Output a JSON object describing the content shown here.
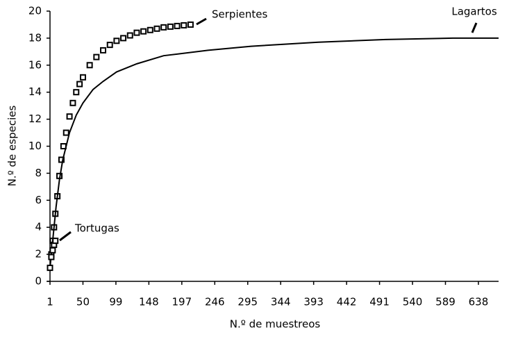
{
  "chart_data": {
    "type": "line",
    "xlabel": "N.º de muestreos",
    "ylabel": "N.º de especies",
    "xlim": [
      1,
      668
    ],
    "ylim": [
      0,
      20
    ],
    "xticks": [
      1,
      50,
      99,
      148,
      197,
      246,
      295,
      344,
      393,
      442,
      491,
      540,
      589,
      638
    ],
    "yticks": [
      0,
      2,
      4,
      6,
      8,
      10,
      12,
      14,
      16,
      18,
      20
    ],
    "series": [
      {
        "name": "Serpientes",
        "color": "#000000",
        "marker": "square",
        "x": [
          1,
          3,
          5,
          7,
          9,
          12,
          15,
          18,
          21,
          25,
          30,
          35,
          40,
          45,
          50,
          60,
          70,
          80,
          90,
          100,
          110,
          120,
          130,
          140,
          150,
          160,
          170,
          180,
          190,
          200,
          210
        ],
        "values": [
          1.0,
          2.0,
          3.0,
          4.0,
          5.0,
          6.3,
          7.8,
          9.0,
          10.0,
          11.0,
          12.2,
          13.2,
          14.0,
          14.6,
          15.1,
          16.0,
          16.6,
          17.1,
          17.5,
          17.8,
          18.0,
          18.2,
          18.4,
          18.5,
          18.6,
          18.7,
          18.8,
          18.85,
          18.9,
          18.95,
          19.0
        ]
      },
      {
        "name": "Lagartos",
        "color": "#000000",
        "marker": "none",
        "x": [
          1,
          5,
          10,
          15,
          20,
          30,
          40,
          50,
          65,
          80,
          100,
          130,
          170,
          236,
          300,
          400,
          500,
          600,
          668
        ],
        "values": [
          1,
          3,
          5.5,
          7.5,
          9,
          11,
          12.3,
          13.2,
          14.2,
          14.8,
          15.5,
          16.1,
          16.7,
          17.1,
          17.4,
          17.7,
          17.9,
          18.0,
          18.0
        ]
      },
      {
        "name": "Tortugas",
        "color": "#000000",
        "marker": "square",
        "x": [
          1,
          3,
          5,
          7,
          9
        ],
        "values": [
          1.0,
          1.8,
          2.3,
          2.7,
          3.0
        ]
      }
    ]
  }
}
